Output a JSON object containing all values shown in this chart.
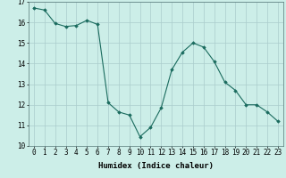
{
  "x": [
    0,
    1,
    2,
    3,
    4,
    5,
    6,
    7,
    8,
    9,
    10,
    11,
    12,
    13,
    14,
    15,
    16,
    17,
    18,
    19,
    20,
    21,
    22,
    23
  ],
  "y": [
    16.7,
    16.6,
    15.95,
    15.8,
    15.85,
    16.1,
    15.9,
    12.1,
    11.65,
    11.5,
    10.45,
    10.9,
    11.85,
    13.7,
    14.55,
    15.0,
    14.8,
    14.1,
    13.1,
    12.7,
    12.0,
    12.0,
    11.65,
    11.2
  ],
  "line_color": "#1a6b5e",
  "marker": "D",
  "marker_size": 1.8,
  "bg_color": "#cceee8",
  "grid_color": "#aacccc",
  "xlabel": "Humidex (Indice chaleur)",
  "xlabel_fontsize": 6.5,
  "tick_fontsize": 5.5,
  "xlim": [
    -0.5,
    23.5
  ],
  "ylim": [
    10,
    17
  ],
  "yticks": [
    10,
    11,
    12,
    13,
    14,
    15,
    16,
    17
  ],
  "xticks": [
    0,
    1,
    2,
    3,
    4,
    5,
    6,
    7,
    8,
    9,
    10,
    11,
    12,
    13,
    14,
    15,
    16,
    17,
    18,
    19,
    20,
    21,
    22,
    23
  ]
}
